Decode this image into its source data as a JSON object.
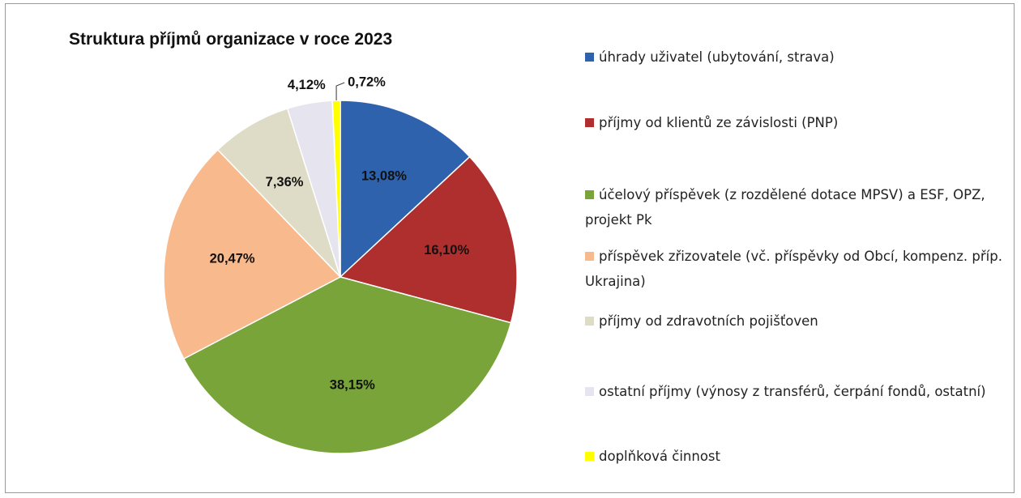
{
  "chart_data": {
    "type": "pie",
    "title": "Struktura příjmů  organizace v roce 2023",
    "categories": [
      "úhrady uživatel (ubytování, strava)",
      "příjmy od klientů ze závislosti (PNP)",
      "účelový příspěvek (z rozdělené dotace MPSV) a ESF, OPZ, projekt Pk",
      "příspěvek zřizovatele (vč. příspěvky od Obcí, kompenz. příp. Ukrajina)",
      "příjmy od zdravotních pojišťoven",
      "ostatní příjmy (výnosy z transférů, čerpání fondů, ostatní)",
      "doplňková činnost"
    ],
    "values": [
      13.08,
      16.1,
      38.15,
      20.47,
      7.36,
      4.12,
      0.72
    ],
    "value_labels": [
      "13,08%",
      "16,10%",
      "38,15%",
      "20,47%",
      "7,36%",
      "4,12%",
      "0,72%"
    ],
    "colors": [
      "#2f62ad",
      "#ae2f2d",
      "#78a43a",
      "#f8b98c",
      "#dedcc6",
      "#e5e4ef",
      "#ffff00"
    ]
  }
}
